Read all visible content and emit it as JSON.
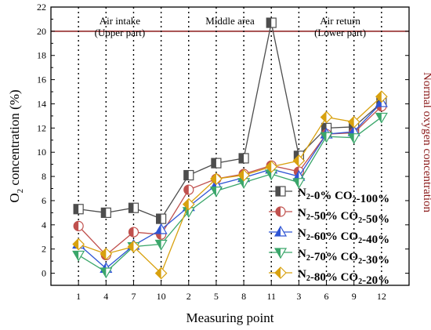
{
  "chart_data": {
    "type": "line",
    "title": "",
    "xlabel": "Measuring point",
    "ylabel": "O2 concentration (%)",
    "ylabel_parts": {
      "pre": "O",
      "sub": "2",
      "post": " concentration (%)"
    },
    "right_label": "Normal oxygen concentration",
    "categories": [
      "1",
      "4",
      "7",
      "10",
      "2",
      "5",
      "8",
      "11",
      "3",
      "6",
      "9",
      "12"
    ],
    "ylim": [
      -1,
      22
    ],
    "yticks": [
      0,
      2,
      4,
      6,
      8,
      10,
      12,
      14,
      16,
      18,
      20,
      22
    ],
    "reference_line": {
      "y": 20,
      "color": "#8b1a1a"
    },
    "region_labels": [
      {
        "line1": "Air intake",
        "line2": "(Upper part)"
      },
      {
        "line1": "Middle area",
        "line2": ""
      },
      {
        "line1": "Air return",
        "line2": "(Lower part)"
      }
    ],
    "legend_position": "bottom-right",
    "series": [
      {
        "name": "N2-0% CO2-100%",
        "n2": "0%",
        "co2": "100%",
        "color": "#4d4d4d",
        "marker": "square",
        "values": [
          5.3,
          5.0,
          5.4,
          4.5,
          8.1,
          9.1,
          9.5,
          20.7,
          9.7,
          12.0,
          12.1,
          14.1
        ]
      },
      {
        "name": "N2-50% CO2-50%",
        "n2": "50%",
        "co2": "50%",
        "color": "#c0504d",
        "marker": "circle",
        "values": [
          3.9,
          1.5,
          3.4,
          3.2,
          6.9,
          7.8,
          8.2,
          8.9,
          8.4,
          11.5,
          11.6,
          13.8
        ]
      },
      {
        "name": "N2-60% CO2-40%",
        "n2": "60%",
        "co2": "40%",
        "color": "#2f55d4",
        "marker": "triangle-up",
        "values": [
          2.4,
          0.4,
          2.3,
          3.6,
          5.5,
          7.3,
          7.9,
          8.6,
          8.0,
          11.5,
          11.7,
          14.1
        ]
      },
      {
        "name": "N2-70% CO2-30%",
        "n2": "70%",
        "co2": "30%",
        "color": "#3aa66a",
        "marker": "triangle-down",
        "values": [
          1.5,
          0.1,
          2.2,
          2.4,
          5.1,
          6.8,
          7.5,
          8.2,
          7.5,
          11.3,
          11.2,
          12.9
        ]
      },
      {
        "name": "N2-80% CO2-20%",
        "n2": "80%",
        "co2": "20%",
        "color": "#d8a10f",
        "marker": "diamond",
        "values": [
          2.4,
          1.6,
          2.2,
          0.0,
          5.7,
          7.8,
          8.1,
          8.8,
          9.3,
          12.9,
          12.5,
          14.6
        ]
      }
    ]
  }
}
